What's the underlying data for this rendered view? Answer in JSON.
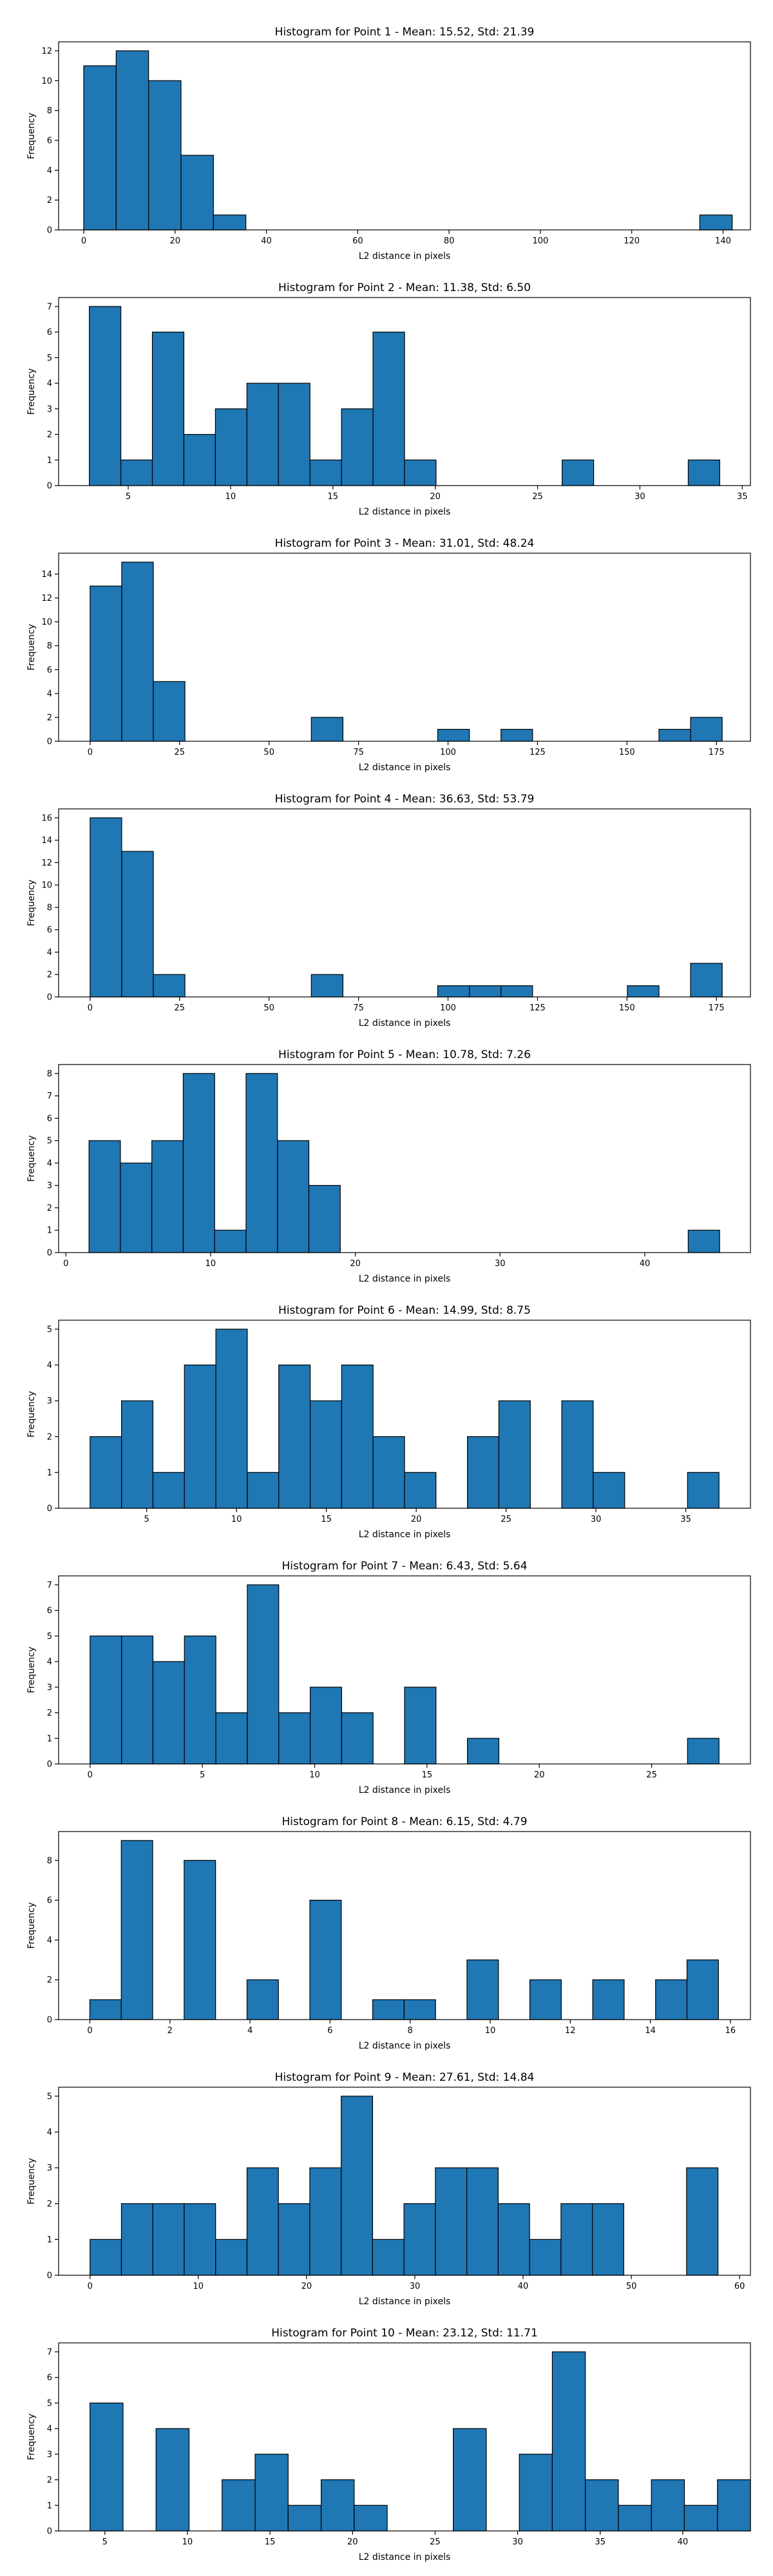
{
  "chart_data": [
    {
      "type": "bar",
      "title": "Histogram for Point 1 - Mean: 15.52, Std: 21.39",
      "xlabel": "L2 distance in pixels",
      "ylabel": "Frequency",
      "xlim": [
        -5.5,
        146
      ],
      "ylim": [
        0,
        12.6
      ],
      "xticks": [
        0,
        20,
        40,
        60,
        80,
        100,
        120,
        140
      ],
      "yticks": [
        0,
        2,
        4,
        6,
        8,
        10,
        12
      ],
      "bins": [
        {
          "x0": 0.0,
          "x1": 7.1,
          "count": 11
        },
        {
          "x0": 7.1,
          "x1": 14.2,
          "count": 12
        },
        {
          "x0": 14.2,
          "x1": 21.3,
          "count": 10
        },
        {
          "x0": 21.3,
          "x1": 28.4,
          "count": 5
        },
        {
          "x0": 28.4,
          "x1": 35.5,
          "count": 1
        },
        {
          "x0": 134.9,
          "x1": 142.0,
          "count": 1
        }
      ]
    },
    {
      "type": "bar",
      "title": "Histogram for Point 2 - Mean: 11.38, Std: 6.50",
      "xlabel": "L2 distance in pixels",
      "ylabel": "Frequency",
      "xlim": [
        1.6,
        35.4
      ],
      "ylim": [
        0,
        7.35
      ],
      "xticks": [
        5,
        10,
        15,
        20,
        25,
        30,
        35
      ],
      "yticks": [
        0,
        1,
        2,
        3,
        4,
        5,
        6,
        7
      ],
      "bins": [
        {
          "x0": 3.1,
          "x1": 4.64,
          "count": 7
        },
        {
          "x0": 4.64,
          "x1": 6.18,
          "count": 1
        },
        {
          "x0": 6.18,
          "x1": 7.72,
          "count": 6
        },
        {
          "x0": 7.72,
          "x1": 9.26,
          "count": 2
        },
        {
          "x0": 9.26,
          "x1": 10.8,
          "count": 3
        },
        {
          "x0": 10.8,
          "x1": 12.34,
          "count": 4
        },
        {
          "x0": 12.34,
          "x1": 13.88,
          "count": 4
        },
        {
          "x0": 13.88,
          "x1": 15.42,
          "count": 1
        },
        {
          "x0": 15.42,
          "x1": 16.96,
          "count": 3
        },
        {
          "x0": 16.96,
          "x1": 18.5,
          "count": 6
        },
        {
          "x0": 18.5,
          "x1": 20.04,
          "count": 1
        },
        {
          "x0": 26.2,
          "x1": 27.74,
          "count": 1
        },
        {
          "x0": 32.36,
          "x1": 33.9,
          "count": 1
        }
      ]
    },
    {
      "type": "bar",
      "title": "Histogram for Point 3 - Mean: 31.01, Std: 48.24",
      "xlabel": "L2 distance in pixels",
      "ylabel": "Frequency",
      "xlim": [
        -8.8,
        184.5
      ],
      "ylim": [
        0,
        15.75
      ],
      "xticks": [
        0,
        25,
        50,
        75,
        100,
        125,
        150,
        175
      ],
      "yticks": [
        0,
        2,
        4,
        6,
        8,
        10,
        12,
        14
      ],
      "bins": [
        {
          "x0": 0.0,
          "x1": 8.83,
          "count": 13
        },
        {
          "x0": 8.83,
          "x1": 17.66,
          "count": 15
        },
        {
          "x0": 17.66,
          "x1": 26.49,
          "count": 5
        },
        {
          "x0": 61.81,
          "x1": 70.64,
          "count": 2
        },
        {
          "x0": 97.13,
          "x1": 105.96,
          "count": 1
        },
        {
          "x0": 114.79,
          "x1": 123.62,
          "count": 1
        },
        {
          "x0": 158.94,
          "x1": 167.77,
          "count": 1
        },
        {
          "x0": 167.77,
          "x1": 176.6,
          "count": 2
        }
      ]
    },
    {
      "type": "bar",
      "title": "Histogram for Point 4 - Mean: 36.63, Std: 53.79",
      "xlabel": "L2 distance in pixels",
      "ylabel": "Frequency",
      "xlim": [
        -8.8,
        184.5
      ],
      "ylim": [
        0,
        16.8
      ],
      "xticks": [
        0,
        25,
        50,
        75,
        100,
        125,
        150,
        175
      ],
      "yticks": [
        0,
        2,
        4,
        6,
        8,
        10,
        12,
        14,
        16
      ],
      "bins": [
        {
          "x0": 0.0,
          "x1": 8.83,
          "count": 16
        },
        {
          "x0": 8.83,
          "x1": 17.66,
          "count": 13
        },
        {
          "x0": 17.66,
          "x1": 26.49,
          "count": 2
        },
        {
          "x0": 61.81,
          "x1": 70.64,
          "count": 2
        },
        {
          "x0": 97.13,
          "x1": 105.96,
          "count": 1
        },
        {
          "x0": 105.96,
          "x1": 114.79,
          "count": 1
        },
        {
          "x0": 114.79,
          "x1": 123.62,
          "count": 1
        },
        {
          "x0": 150.11,
          "x1": 158.94,
          "count": 1
        },
        {
          "x0": 167.77,
          "x1": 176.6,
          "count": 3
        }
      ]
    },
    {
      "type": "bar",
      "title": "Histogram for Point 5 - Mean: 10.78, Std: 7.26",
      "xlabel": "L2 distance in pixels",
      "ylabel": "Frequency",
      "xlim": [
        -0.5,
        47.3
      ],
      "ylim": [
        0,
        8.4
      ],
      "xticks": [
        0,
        10,
        20,
        30,
        40
      ],
      "yticks": [
        0,
        1,
        2,
        3,
        4,
        5,
        6,
        7,
        8
      ],
      "bins": [
        {
          "x0": 1.6,
          "x1": 3.77,
          "count": 5
        },
        {
          "x0": 3.77,
          "x1": 5.94,
          "count": 4
        },
        {
          "x0": 5.94,
          "x1": 8.11,
          "count": 5
        },
        {
          "x0": 8.11,
          "x1": 10.28,
          "count": 8
        },
        {
          "x0": 10.28,
          "x1": 12.45,
          "count": 1
        },
        {
          "x0": 12.45,
          "x1": 14.62,
          "count": 8
        },
        {
          "x0": 14.62,
          "x1": 16.79,
          "count": 5
        },
        {
          "x0": 16.79,
          "x1": 18.96,
          "count": 3
        },
        {
          "x0": 43.0,
          "x1": 45.17,
          "count": 1
        }
      ]
    },
    {
      "type": "bar",
      "title": "Histogram for Point 6 - Mean: 14.99, Std: 8.75",
      "xlabel": "L2 distance in pixels",
      "ylabel": "Frequency",
      "xlim": [
        0.1,
        38.6
      ],
      "ylim": [
        0,
        5.25
      ],
      "xticks": [
        5,
        10,
        15,
        20,
        25,
        30,
        35
      ],
      "yticks": [
        0,
        1,
        2,
        3,
        4,
        5
      ],
      "bins": [
        {
          "x0": 1.85,
          "x1": 3.6,
          "count": 2
        },
        {
          "x0": 3.6,
          "x1": 5.35,
          "count": 3
        },
        {
          "x0": 5.35,
          "x1": 7.1,
          "count": 1
        },
        {
          "x0": 7.1,
          "x1": 8.85,
          "count": 4
        },
        {
          "x0": 8.85,
          "x1": 10.6,
          "count": 5
        },
        {
          "x0": 10.6,
          "x1": 12.35,
          "count": 1
        },
        {
          "x0": 12.35,
          "x1": 14.1,
          "count": 4
        },
        {
          "x0": 14.1,
          "x1": 15.85,
          "count": 3
        },
        {
          "x0": 15.85,
          "x1": 17.6,
          "count": 4
        },
        {
          "x0": 17.6,
          "x1": 19.35,
          "count": 2
        },
        {
          "x0": 19.35,
          "x1": 21.1,
          "count": 1
        },
        {
          "x0": 22.85,
          "x1": 24.6,
          "count": 2
        },
        {
          "x0": 24.6,
          "x1": 26.35,
          "count": 3
        },
        {
          "x0": 28.1,
          "x1": 29.85,
          "count": 3
        },
        {
          "x0": 29.85,
          "x1": 31.6,
          "count": 1
        },
        {
          "x0": 35.1,
          "x1": 36.85,
          "count": 1
        }
      ]
    },
    {
      "type": "bar",
      "title": "Histogram for Point 7 - Mean: 6.43, Std: 5.64",
      "xlabel": "L2 distance in pixels",
      "ylabel": "Frequency",
      "xlim": [
        -1.4,
        29.4
      ],
      "ylim": [
        0,
        7.35
      ],
      "xticks": [
        0,
        5,
        10,
        15,
        20,
        25
      ],
      "yticks": [
        0,
        1,
        2,
        3,
        4,
        5,
        6,
        7
      ],
      "bins": [
        {
          "x0": 0.0,
          "x1": 1.4,
          "count": 5
        },
        {
          "x0": 1.4,
          "x1": 2.8,
          "count": 5
        },
        {
          "x0": 2.8,
          "x1": 4.2,
          "count": 4
        },
        {
          "x0": 4.2,
          "x1": 5.6,
          "count": 5
        },
        {
          "x0": 5.6,
          "x1": 7.0,
          "count": 2
        },
        {
          "x0": 7.0,
          "x1": 8.4,
          "count": 7
        },
        {
          "x0": 8.4,
          "x1": 9.8,
          "count": 2
        },
        {
          "x0": 9.8,
          "x1": 11.2,
          "count": 3
        },
        {
          "x0": 11.2,
          "x1": 12.6,
          "count": 2
        },
        {
          "x0": 14.0,
          "x1": 15.4,
          "count": 3
        },
        {
          "x0": 16.8,
          "x1": 18.2,
          "count": 1
        },
        {
          "x0": 26.6,
          "x1": 28.0,
          "count": 1
        }
      ]
    },
    {
      "type": "bar",
      "title": "Histogram for Point 8 - Mean: 6.15, Std: 4.79",
      "xlabel": "L2 distance in pixels",
      "ylabel": "Frequency",
      "xlim": [
        -0.78,
        16.5
      ],
      "ylim": [
        0,
        9.45
      ],
      "xticks": [
        0,
        2,
        4,
        6,
        8,
        10,
        12,
        14,
        16
      ],
      "yticks": [
        0,
        2,
        4,
        6,
        8
      ],
      "bins": [
        {
          "x0": 0.0,
          "x1": 0.785,
          "count": 1
        },
        {
          "x0": 0.785,
          "x1": 1.57,
          "count": 9
        },
        {
          "x0": 2.355,
          "x1": 3.14,
          "count": 8
        },
        {
          "x0": 3.925,
          "x1": 4.71,
          "count": 2
        },
        {
          "x0": 5.495,
          "x1": 6.28,
          "count": 6
        },
        {
          "x0": 7.065,
          "x1": 7.85,
          "count": 1
        },
        {
          "x0": 7.85,
          "x1": 8.635,
          "count": 1
        },
        {
          "x0": 9.42,
          "x1": 10.205,
          "count": 3
        },
        {
          "x0": 10.99,
          "x1": 11.775,
          "count": 2
        },
        {
          "x0": 12.56,
          "x1": 13.345,
          "count": 2
        },
        {
          "x0": 14.13,
          "x1": 14.915,
          "count": 2
        },
        {
          "x0": 14.915,
          "x1": 15.7,
          "count": 3
        }
      ]
    },
    {
      "type": "bar",
      "title": "Histogram for Point 9 - Mean: 27.61, Std: 14.84",
      "xlabel": "L2 distance in pixels",
      "ylabel": "Frequency",
      "xlim": [
        -2.9,
        61.0
      ],
      "ylim": [
        0,
        5.25
      ],
      "xticks": [
        0,
        10,
        20,
        30,
        40,
        50,
        60
      ],
      "yticks": [
        0,
        1,
        2,
        3,
        4,
        5
      ],
      "bins": [
        {
          "x0": 0.0,
          "x1": 2.9,
          "count": 1
        },
        {
          "x0": 2.9,
          "x1": 5.8,
          "count": 2
        },
        {
          "x0": 5.8,
          "x1": 8.7,
          "count": 2
        },
        {
          "x0": 8.7,
          "x1": 11.6,
          "count": 2
        },
        {
          "x0": 11.6,
          "x1": 14.5,
          "count": 1
        },
        {
          "x0": 14.5,
          "x1": 17.4,
          "count": 3
        },
        {
          "x0": 17.4,
          "x1": 20.3,
          "count": 2
        },
        {
          "x0": 20.3,
          "x1": 23.2,
          "count": 3
        },
        {
          "x0": 23.2,
          "x1": 26.1,
          "count": 5
        },
        {
          "x0": 26.1,
          "x1": 29.0,
          "count": 1
        },
        {
          "x0": 29.0,
          "x1": 31.9,
          "count": 2
        },
        {
          "x0": 31.9,
          "x1": 34.8,
          "count": 3
        },
        {
          "x0": 34.8,
          "x1": 37.7,
          "count": 3
        },
        {
          "x0": 37.7,
          "x1": 40.6,
          "count": 2
        },
        {
          "x0": 40.6,
          "x1": 43.5,
          "count": 1
        },
        {
          "x0": 43.5,
          "x1": 46.4,
          "count": 2
        },
        {
          "x0": 46.4,
          "x1": 49.3,
          "count": 2
        },
        {
          "x0": 55.1,
          "x1": 58.0,
          "count": 3
        }
      ]
    },
    {
      "type": "bar",
      "title": "Histogram for Point 10 - Mean: 23.12, Std: 11.71",
      "xlabel": "L2 distance in pixels",
      "ylabel": "Frequency",
      "xlim": [
        2.2,
        44.1
      ],
      "ylim": [
        0,
        7.35
      ],
      "xticks": [
        5,
        10,
        15,
        20,
        25,
        30,
        35,
        40
      ],
      "yticks": [
        0,
        1,
        2,
        3,
        4,
        5,
        6,
        7
      ],
      "bins": [
        {
          "x0": 4.1,
          "x1": 6.1,
          "count": 5
        },
        {
          "x0": 8.1,
          "x1": 10.1,
          "count": 4
        },
        {
          "x0": 12.1,
          "x1": 14.1,
          "count": 2
        },
        {
          "x0": 14.1,
          "x1": 16.1,
          "count": 3
        },
        {
          "x0": 16.1,
          "x1": 18.1,
          "count": 1
        },
        {
          "x0": 18.1,
          "x1": 20.1,
          "count": 2
        },
        {
          "x0": 20.1,
          "x1": 22.1,
          "count": 1
        },
        {
          "x0": 26.1,
          "x1": 28.1,
          "count": 4
        },
        {
          "x0": 30.1,
          "x1": 32.1,
          "count": 3
        },
        {
          "x0": 32.1,
          "x1": 34.1,
          "count": 7
        },
        {
          "x0": 34.1,
          "x1": 36.1,
          "count": 2
        },
        {
          "x0": 36.1,
          "x1": 38.1,
          "count": 1
        },
        {
          "x0": 38.1,
          "x1": 40.1,
          "count": 2
        },
        {
          "x0": 40.1,
          "x1": 42.1,
          "count": 1
        },
        {
          "x0": 42.1,
          "x1": 44.1,
          "count": 2
        }
      ]
    }
  ]
}
